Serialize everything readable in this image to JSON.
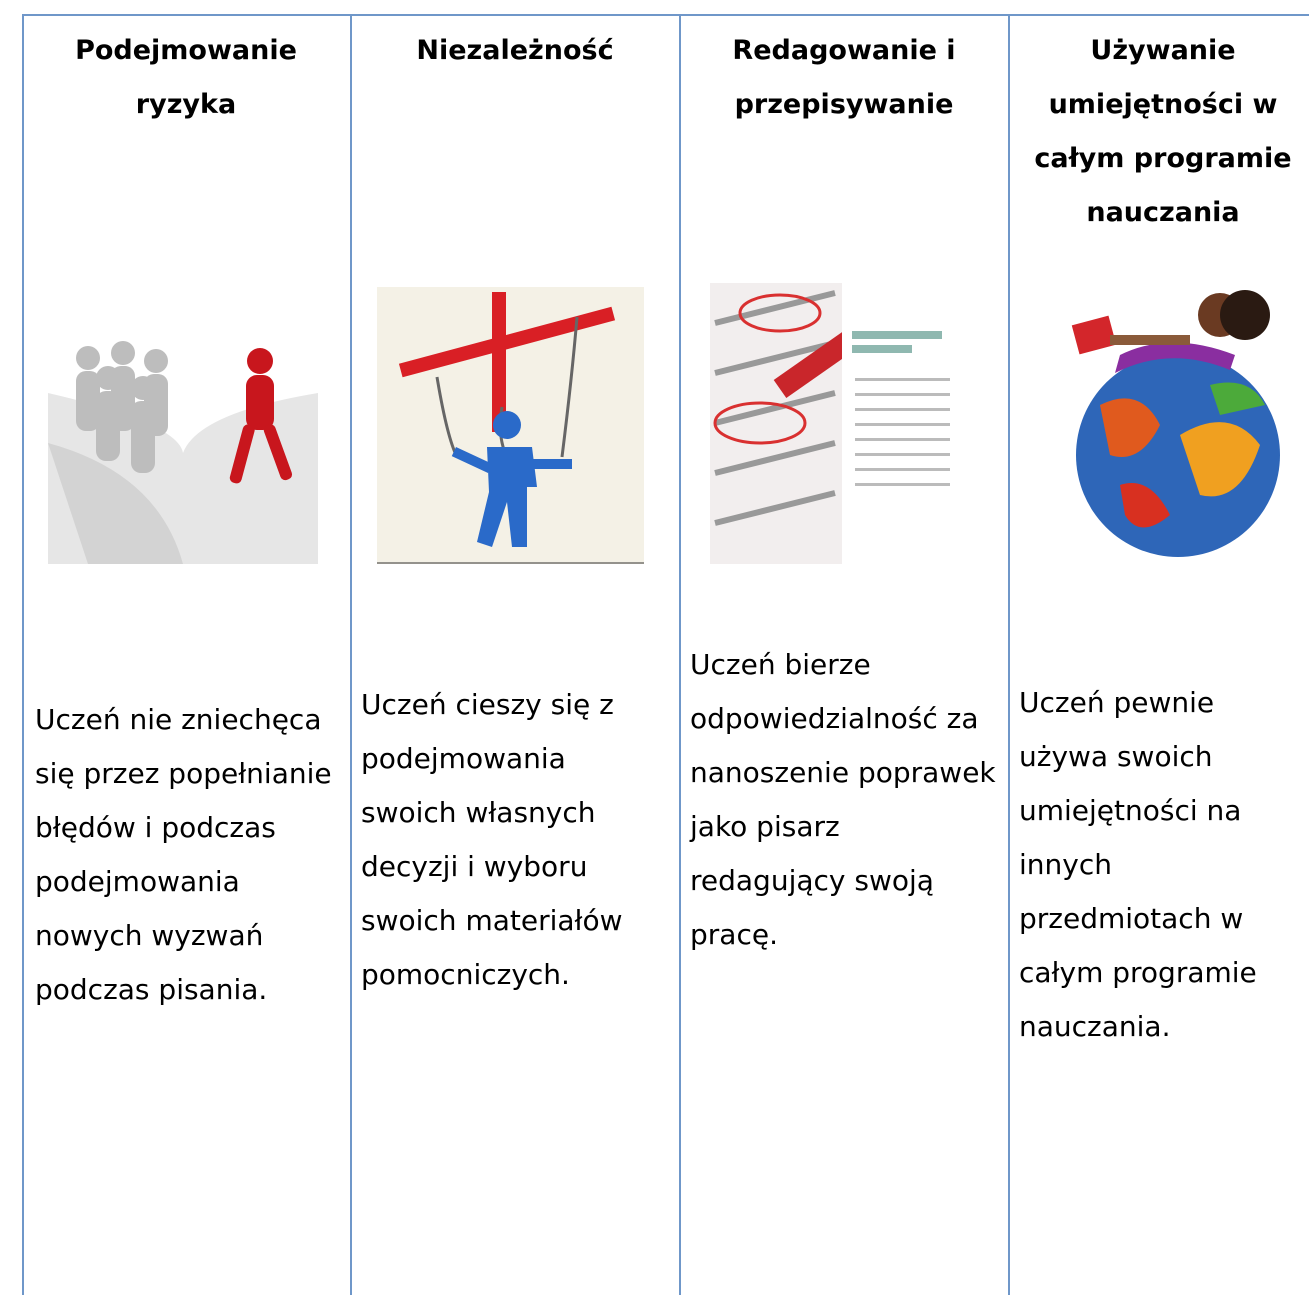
{
  "table": {
    "columns": [
      {
        "title": "Podejmowanie ryzyka",
        "description": "Uczeń nie zniechęca się przez popełnianie błędów i podczas podejmowania nowych wyzwań podczas pisania."
      },
      {
        "title": "Niezależność",
        "description": "Uczeń cieszy się z podejmowania swoich własnych decyzji i wyboru swoich materiałów pomocniczych."
      },
      {
        "title": "Redagowanie i przepisywanie",
        "description": "Uczeń bierze odpowiedzialność za nanoszenie poprawek jako pisarz redagujący swoją pracę."
      },
      {
        "title": "Używanie umiejętności w całym programie nauczania",
        "description": "Uczeń pewnie używa swoich umiejętności na innych przedmiotach w całym programie nauczania."
      }
    ]
  }
}
